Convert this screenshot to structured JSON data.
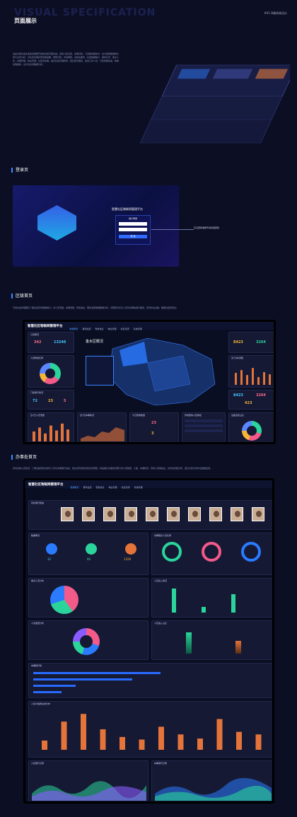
{
  "header": {
    "bg_text": "VISUAL SPECIFICATION",
    "title": "页面展示",
    "tag": "#01 B端系统设计"
  },
  "intro": "这是为郑州金水区政务事物开发的社区管理系统。适用人脸识别、车辆识别、门禁联动等技术，充分发挥数据的价值与全局分析，对社区管理实现智能提醒、预警可视、实时展现。系统功能有：社区数据统计、事件实况、重点人员、车辆管理、物业管理、社区周边等；提高社区管理效率，使社区管理员、街道工作人员、与民警能快速、精准处理事务，全方位支持数据分析。",
  "sections": {
    "login": "登录页",
    "district": "区级首页",
    "office": "办事处首页"
  },
  "login": {
    "platform": "智慧社区物联网管理平台",
    "user_tab": "用户登录",
    "btn": "登 录",
    "note": "忘记密码或账号请找回密码"
  },
  "district_desc": "可供社会管理团队了解社区实时数据统计；对人员流量、车辆流量、异常进出、事件进度等做数据分析，对照警示标记人员及车辆的通行路线，实时作出决策，确保社区的安全。",
  "office_desc": "实时反映人员情况，了解当前辖区内通行人员与车辆通行动态，通过对异常情况的及时预警，快速展示办事处管理下的小区数量、人数、车辆情况、异常人员等信息，并作出智能分析，通过分析及时作出数据监测。",
  "app": {
    "name": "智慧社区物联网管理平台",
    "nav": [
      "数据概览",
      "事件监控",
      "警告信息",
      "物业管理",
      "社区资源",
      "系统管理"
    ],
    "map_title": "金水区概况"
  },
  "district_kpis": {
    "a": "342",
    "b": "13246",
    "c": "8423",
    "d": "3264",
    "e": "8423",
    "f": "3264",
    "g": "423",
    "h": "72",
    "i": "23",
    "j": "5",
    "k": "23",
    "l": "3"
  },
  "district_panels": [
    "小区概况",
    "人员构成比例",
    "门禁通行情况",
    "近7日人员流量",
    "近7日车辆情况",
    "今日警情数量",
    "异常警情小区排名",
    "设备活跃占比",
    "近7日车流量"
  ],
  "office_panels": [
    "实时通行抓拍",
    "数据概览",
    "房屋租赁人员比例",
    "重点人员分布",
    "人员出入情况",
    "人员类型分布",
    "人员进入占比",
    "车辆排行榜",
    "人员户籍所在地分布",
    "人员通行记录",
    "车辆通行记录"
  ],
  "office_kpis": {
    "a": "32",
    "b": "86",
    "c": "1326"
  },
  "chart_data": {
    "type": "bar",
    "categories": [
      "1",
      "2",
      "3",
      "4",
      "5",
      "6",
      "7",
      "8",
      "9",
      "10",
      "11",
      "12"
    ],
    "values": [
      18,
      55,
      70,
      40,
      25,
      20,
      45,
      30,
      22,
      60,
      35,
      30
    ]
  }
}
